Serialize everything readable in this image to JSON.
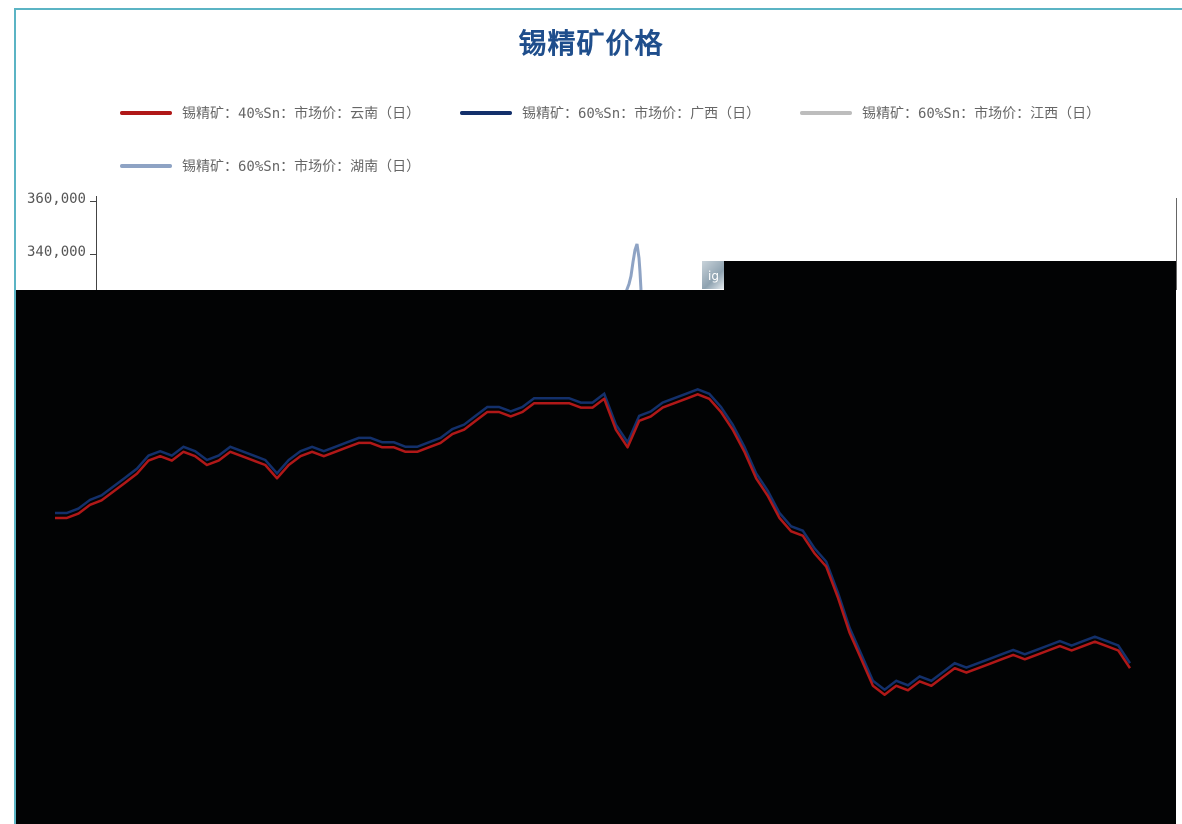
{
  "chart_data": {
    "type": "line",
    "title": "锡精矿价格",
    "xlabel": "",
    "ylabel": "",
    "yticks": [
      "360,000",
      "340,000"
    ],
    "ylim": [
      240000,
      360000
    ],
    "legend_position": "top",
    "grid": false,
    "series": [
      {
        "name": "锡精矿：40%Sn：市场价：云南（日）",
        "color": "#b01818",
        "values": [
          288000,
          288000,
          289000,
          291000,
          292000,
          294000,
          296000,
          298000,
          301000,
          302000,
          301000,
          303000,
          302000,
          300000,
          301000,
          303000,
          302000,
          301000,
          300000,
          297000,
          300000,
          302000,
          303000,
          302000,
          303000,
          304000,
          305000,
          305000,
          304000,
          304000,
          303000,
          303000,
          304000,
          305000,
          307000,
          308000,
          310000,
          312000,
          312000,
          311000,
          312000,
          314000,
          314000,
          314000,
          314000,
          313000,
          313000,
          315000,
          308000,
          304000,
          310000,
          311000,
          313000,
          314000,
          315000,
          316000,
          315000,
          312000,
          308000,
          303000,
          297000,
          293000,
          288000,
          285000,
          284000,
          280000,
          277000,
          270000,
          262000,
          256000,
          250000,
          248000,
          250000,
          249000,
          251000,
          250000,
          252000,
          254000,
          253000,
          254000,
          255000,
          256000,
          257000,
          256000,
          257000,
          258000,
          259000,
          258000,
          259000,
          260000,
          259000,
          258000,
          254000
        ]
      },
      {
        "name": "锡精矿：60%Sn：市场价：广西（日）",
        "color": "#13306b"
      },
      {
        "name": "锡精矿：60%Sn：市场价：江西（日）",
        "color": "#bdbdbd"
      },
      {
        "name": "锡精矿：60%Sn：市场价：湖南（日）",
        "color": "#8ea3c4"
      }
    ]
  },
  "overlay": {
    "thumbnail_glyph": "ig"
  }
}
